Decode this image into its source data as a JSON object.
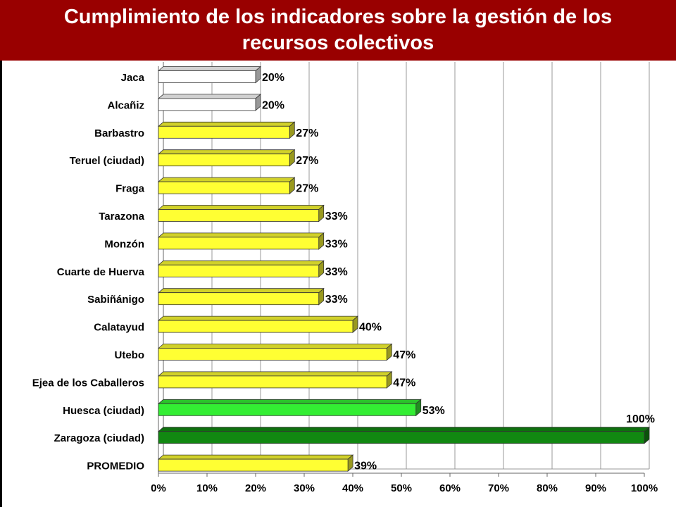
{
  "title": "Cumplimiento de los indicadores sobre la gestión de los recursos colectivos",
  "colors": {
    "banner": "#990000",
    "title_text": "#ffffff",
    "white_bar": "#ffffff",
    "yellow_bar": "#ffff33",
    "light_green_bar": "#33ee33",
    "dark_green_bar": "#118811",
    "grid": "#999999"
  },
  "chart_data": {
    "type": "bar",
    "orientation": "horizontal",
    "style": "3d",
    "title": "Cumplimiento de los indicadores sobre la gestión de los recursos colectivos",
    "xlabel": "",
    "ylabel": "",
    "xlim": [
      0,
      100
    ],
    "x_ticks": [
      "0%",
      "10%",
      "20%",
      "30%",
      "40%",
      "50%",
      "60%",
      "70%",
      "80%",
      "90%",
      "100%"
    ],
    "grid": "vertical",
    "legend": "none",
    "categories": [
      "Jaca",
      "Alcañiz",
      "Barbastro",
      "Teruel (ciudad)",
      "Fraga",
      "Tarazona",
      "Monzón",
      "Cuarte de Huerva",
      "Sabiñánigo",
      "Calatayud",
      "Utebo",
      "Ejea de los Caballeros",
      "Huesca (ciudad)",
      "Zaragoza (ciudad)",
      "PROMEDIO"
    ],
    "values": [
      20,
      20,
      27,
      27,
      27,
      33,
      33,
      33,
      33,
      40,
      47,
      47,
      53,
      100,
      39
    ],
    "data_labels": [
      "20%",
      "20%",
      "27%",
      "27%",
      "27%",
      "33%",
      "33%",
      "33%",
      "33%",
      "40%",
      "47%",
      "47%",
      "53%",
      "100%",
      "39%"
    ],
    "bar_colors": [
      "white",
      "white",
      "yellow",
      "yellow",
      "yellow",
      "yellow",
      "yellow",
      "yellow",
      "yellow",
      "yellow",
      "yellow",
      "yellow",
      "light_green",
      "dark_green",
      "yellow"
    ]
  }
}
